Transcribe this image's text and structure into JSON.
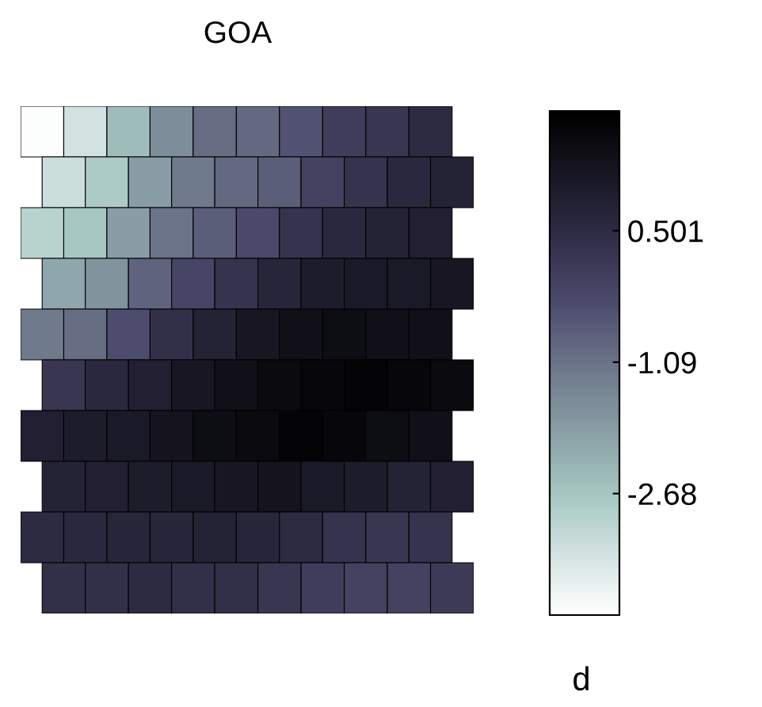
{
  "chart_data": {
    "type": "heatmap",
    "title": "GOA",
    "clabel": "d",
    "categories": [
      null,
      null,
      null,
      null,
      null,
      null,
      null,
      null,
      null,
      null
    ],
    "y_categories": [
      null,
      null,
      null,
      null,
      null,
      null,
      null,
      null,
      null,
      null
    ],
    "cells": [
      [
        -4.1,
        -3.4,
        -2.5,
        -1.6,
        -1.0,
        -0.9,
        -0.5,
        0.0,
        0.2,
        0.5
      ],
      [
        -3.3,
        -2.8,
        -1.9,
        -1.2,
        -0.9,
        -0.7,
        -0.1,
        0.3,
        0.6,
        0.8
      ],
      [
        -3.0,
        -2.7,
        -1.9,
        -1.1,
        -0.7,
        -0.3,
        0.3,
        0.6,
        0.8,
        0.9
      ],
      [
        -2.1,
        -1.7,
        -0.8,
        -0.2,
        0.3,
        0.7,
        1.0,
        1.1,
        1.1,
        1.2
      ],
      [
        -1.2,
        -1.0,
        -0.4,
        0.4,
        0.8,
        1.2,
        1.4,
        1.5,
        1.4,
        1.4
      ],
      [
        0.2,
        0.6,
        0.9,
        1.2,
        1.4,
        1.6,
        1.7,
        1.8,
        1.7,
        1.6
      ],
      [
        0.9,
        1.0,
        1.1,
        1.3,
        1.5,
        1.6,
        1.8,
        1.7,
        1.5,
        1.4
      ],
      [
        0.8,
        0.9,
        1.0,
        1.1,
        1.2,
        1.3,
        1.1,
        1.0,
        0.8,
        0.9
      ],
      [
        0.5,
        0.6,
        0.7,
        0.7,
        0.8,
        0.7,
        0.5,
        0.3,
        0.2,
        0.3
      ],
      [
        0.4,
        0.4,
        0.5,
        0.4,
        0.4,
        0.2,
        0.0,
        -0.1,
        -0.1,
        0.1
      ]
    ],
    "clim": [
      -4.15,
      1.95
    ],
    "cticks": [
      -2.68,
      -1.09,
      0.501
    ]
  }
}
